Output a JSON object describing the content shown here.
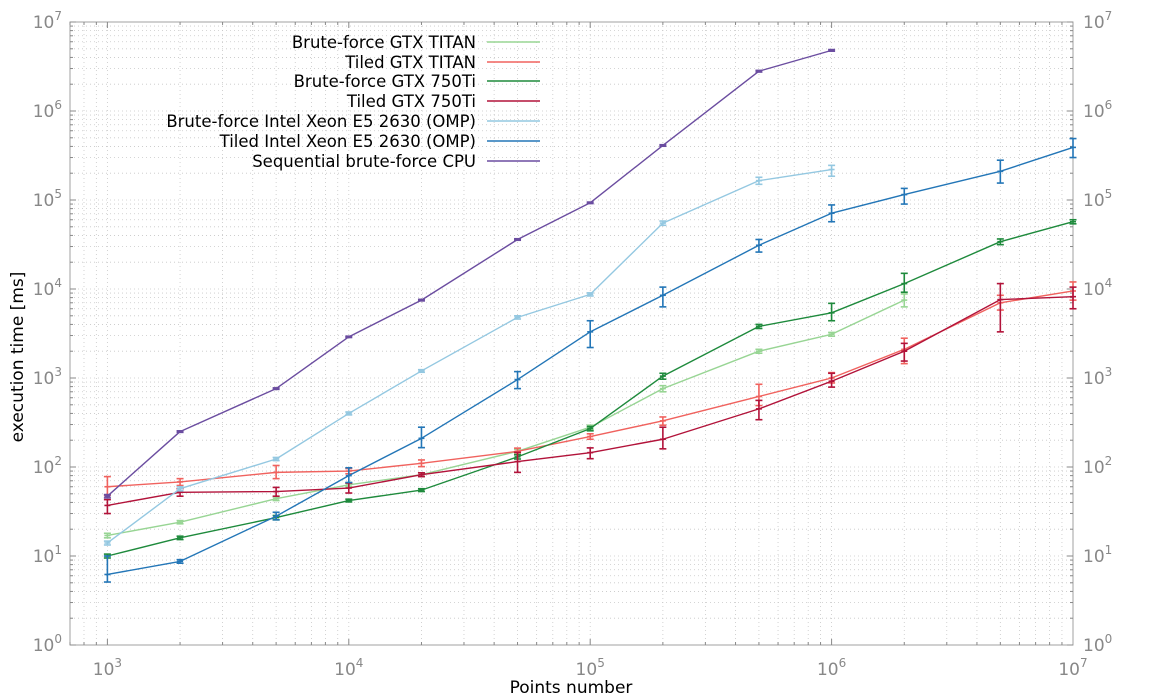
{
  "chart_data": {
    "type": "line",
    "title": "",
    "xlabel": "Points number",
    "ylabel": "execution time [ms]",
    "x_scale": "log",
    "y_scale": "log",
    "xlim": [
      700,
      10000000
    ],
    "ylim": [
      1,
      10000000
    ],
    "grid": true,
    "legend_position": "top-left",
    "x_ticks": [
      {
        "base": "10",
        "exp": "3",
        "value": 1000
      },
      {
        "base": "10",
        "exp": "4",
        "value": 10000
      },
      {
        "base": "10",
        "exp": "5",
        "value": 100000
      },
      {
        "base": "10",
        "exp": "6",
        "value": 1000000
      },
      {
        "base": "10",
        "exp": "7",
        "value": 10000000
      }
    ],
    "y_ticks": [
      {
        "base": "10",
        "exp": "0",
        "value": 1
      },
      {
        "base": "10",
        "exp": "1",
        "value": 10
      },
      {
        "base": "10",
        "exp": "2",
        "value": 100
      },
      {
        "base": "10",
        "exp": "3",
        "value": 1000
      },
      {
        "base": "10",
        "exp": "4",
        "value": 10000
      },
      {
        "base": "10",
        "exp": "5",
        "value": 100000
      },
      {
        "base": "10",
        "exp": "6",
        "value": 1000000
      },
      {
        "base": "10",
        "exp": "7",
        "value": 10000000
      }
    ],
    "series": [
      {
        "name": "Brute-force GTX TITAN",
        "color": "#98d594",
        "x": [
          1000,
          2000,
          5000,
          10000,
          20000,
          50000,
          100000,
          200000,
          500000,
          1000000,
          2000000
        ],
        "y": [
          17,
          24,
          44,
          63,
          82,
          150,
          280,
          760,
          2000,
          3100,
          7500
        ],
        "err_low": [
          16,
          23,
          42,
          60,
          78,
          142,
          265,
          700,
          1900,
          2950,
          6300
        ],
        "err_high": [
          18,
          25,
          46,
          66,
          86,
          158,
          295,
          820,
          2100,
          3250,
          8800
        ]
      },
      {
        "name": "Tiled GTX TITAN",
        "color": "#f0625e",
        "x": [
          1000,
          2000,
          5000,
          10000,
          20000,
          50000,
          100000,
          200000,
          500000,
          1000000,
          2000000,
          5000000,
          10000000
        ],
        "y": [
          60,
          68,
          87,
          90,
          110,
          150,
          220,
          330,
          620,
          1000,
          2100,
          7000,
          9500
        ],
        "err_low": [
          48,
          62,
          74,
          84,
          101,
          138,
          205,
          295,
          490,
          880,
          1450,
          5800,
          7500
        ],
        "err_high": [
          78,
          74,
          104,
          96,
          120,
          163,
          236,
          365,
          850,
          1150,
          2800,
          8500,
          12000
        ]
      },
      {
        "name": "Brute-force GTX 750Ti",
        "color": "#1e8a3c",
        "x": [
          1000,
          2000,
          5000,
          10000,
          20000,
          50000,
          100000,
          200000,
          500000,
          1000000,
          2000000,
          5000000,
          10000000
        ],
        "y": [
          10,
          16,
          27,
          42,
          55,
          130,
          270,
          1050,
          3800,
          5400,
          11500,
          34000,
          57000
        ],
        "err_low": [
          9.5,
          15.3,
          25.5,
          40.5,
          53,
          123,
          255,
          970,
          3600,
          4400,
          9200,
          31500,
          54000
        ],
        "err_high": [
          10.5,
          16.7,
          28.5,
          43.5,
          57,
          137,
          285,
          1130,
          4000,
          6900,
          15000,
          36500,
          60000
        ]
      },
      {
        "name": "Tiled GTX 750Ti",
        "color": "#b2133a",
        "x": [
          1000,
          2000,
          5000,
          10000,
          20000,
          50000,
          100000,
          200000,
          500000,
          1000000,
          2000000,
          5000000,
          10000000
        ],
        "y": [
          37,
          52,
          53,
          58,
          82,
          115,
          145,
          205,
          450,
          920,
          2000,
          7600,
          8200
        ],
        "err_low": [
          30,
          47,
          47,
          51,
          78,
          87,
          124,
          160,
          340,
          790,
          1550,
          3300,
          6000
        ],
        "err_high": [
          43,
          57,
          59,
          66,
          86,
          146,
          164,
          280,
          560,
          1130,
          2450,
          11500,
          10500
        ]
      },
      {
        "name": "Brute-force Intel Xeon E5 2630 (OMP)",
        "color": "#94c8e1",
        "x": [
          1000,
          2000,
          5000,
          10000,
          20000,
          50000,
          100000,
          200000,
          500000,
          1000000
        ],
        "y": [
          14,
          57,
          123,
          400,
          1200,
          4800,
          8700,
          55000,
          165000,
          220000
        ],
        "err_low": [
          13.3,
          54,
          118,
          385,
          1160,
          4600,
          8350,
          52000,
          150000,
          185000
        ],
        "err_high": [
          14.7,
          60,
          128,
          415,
          1240,
          5000,
          9050,
          58000,
          180000,
          245000
        ]
      },
      {
        "name": "Tiled Intel Xeon E5 2630 (OMP)",
        "color": "#2376b7",
        "x": [
          1000,
          2000,
          5000,
          10000,
          20000,
          50000,
          100000,
          200000,
          500000,
          1000000,
          2000000,
          5000000,
          10000000
        ],
        "y": [
          6.2,
          8.7,
          28,
          80,
          210,
          960,
          3300,
          8500,
          31000,
          71000,
          115000,
          210000,
          390000
        ],
        "err_low": [
          5.1,
          8.3,
          25.5,
          67,
          165,
          760,
          2200,
          6300,
          26000,
          57000,
          90000,
          155000,
          300000
        ],
        "err_high": [
          10,
          9.1,
          31,
          98,
          280,
          1180,
          4400,
          10500,
          36000,
          88000,
          135000,
          280000,
          490000
        ]
      },
      {
        "name": "Sequential brute-force CPU",
        "color": "#6b4da0",
        "x": [
          1000,
          2000,
          5000,
          10000,
          20000,
          50000,
          100000,
          200000,
          500000,
          1000000
        ],
        "y": [
          47,
          250,
          760,
          2900,
          7500,
          36000,
          93000,
          410000,
          2800000,
          4800000
        ],
        "err_low": [
          45,
          245,
          745,
          2850,
          7350,
          35300,
          91200,
          402000,
          2740000,
          4700000
        ],
        "err_high": [
          49,
          255,
          775,
          2950,
          7650,
          36700,
          94800,
          418000,
          2860000,
          4900000
        ]
      }
    ]
  }
}
